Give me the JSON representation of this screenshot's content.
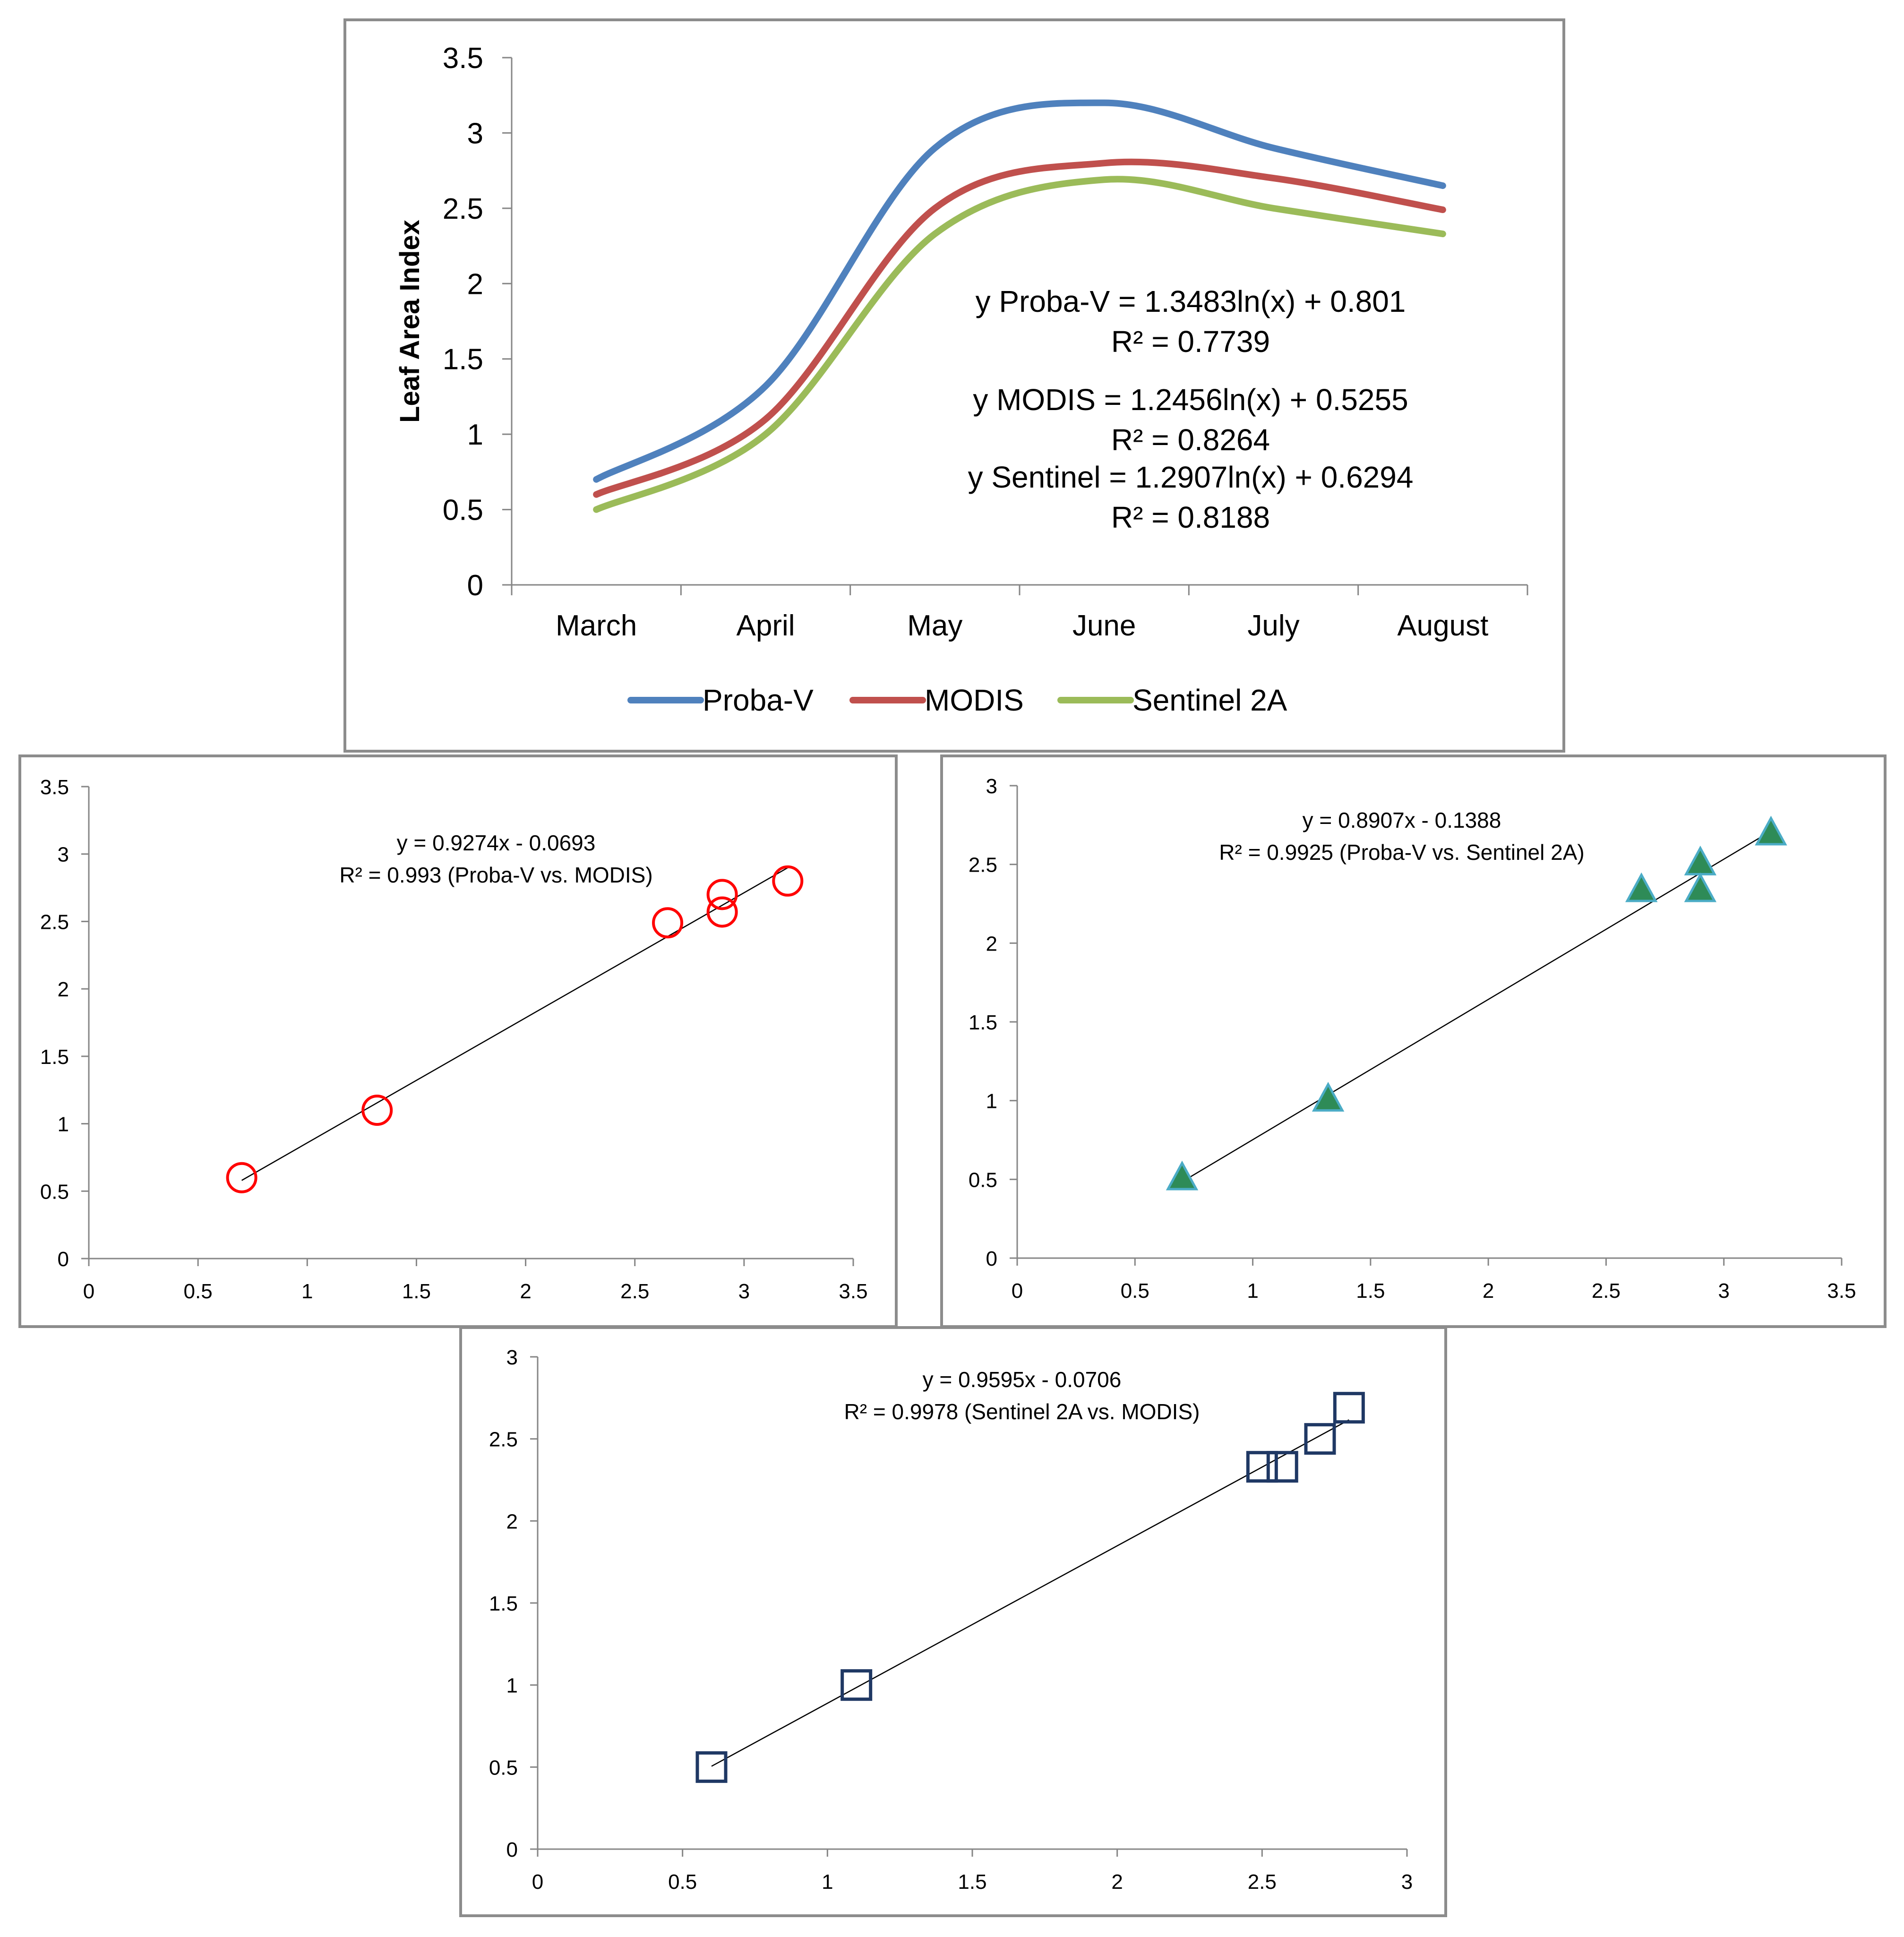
{
  "chart_data": [
    {
      "type": "line",
      "ylabel": "Leaf Area Index",
      "categories": [
        "March",
        "April",
        "May",
        "June",
        "July",
        "August"
      ],
      "yticks": [
        "0",
        "0.5",
        "1",
        "1.5",
        "2",
        "2.5",
        "3",
        "3.5"
      ],
      "ylim": [
        0,
        3.5
      ],
      "grid": false,
      "legend_position": "bottom",
      "series": [
        {
          "name": "Proba-V",
          "color": "#4f81bd",
          "values": [
            0.7,
            1.32,
            2.9,
            3.2,
            2.9,
            2.65
          ]
        },
        {
          "name": "MODIS",
          "color": "#c0504d",
          "values": [
            0.6,
            1.1,
            2.5,
            2.8,
            2.7,
            2.49
          ]
        },
        {
          "name": "Sentinel 2A",
          "color": "#9bbb59",
          "values": [
            0.5,
            1.0,
            2.33,
            2.69,
            2.5,
            2.33
          ]
        }
      ],
      "annotations": [
        "y Proba-V = 1.3483ln(x) + 0.801",
        "R² = 0.7739",
        "y MODIS = 1.2456ln(x) + 0.5255",
        "R² = 0.8264",
        "y Sentinel = 1.2907ln(x) + 0.6294",
        "R² = 0.8188"
      ]
    },
    {
      "type": "scatter",
      "xlim": [
        0,
        3.5
      ],
      "ylim": [
        0,
        3.5
      ],
      "xticks": [
        "0",
        "0.5",
        "1",
        "1.5",
        "2",
        "2.5",
        "3",
        "3.5"
      ],
      "yticks": [
        "0",
        "0.5",
        "1",
        "1.5",
        "2",
        "2.5",
        "3",
        "3.5"
      ],
      "marker": "circle",
      "marker_color": "#ff0000",
      "points": [
        [
          0.7,
          0.6
        ],
        [
          1.32,
          1.1
        ],
        [
          2.65,
          2.49
        ],
        [
          2.9,
          2.7
        ],
        [
          2.9,
          2.57
        ],
        [
          3.2,
          2.8
        ]
      ],
      "trendline": {
        "slope": 0.9274,
        "intercept": -0.0693,
        "x_range": [
          0.7,
          3.2
        ]
      },
      "annotations": [
        "y = 0.9274x - 0.0693",
        "R² = 0.993 (Proba-V vs. MODIS)"
      ]
    },
    {
      "type": "scatter",
      "xlim": [
        0,
        3.5
      ],
      "ylim": [
        0,
        3
      ],
      "xticks": [
        "0",
        "0.5",
        "1",
        "1.5",
        "2",
        "2.5",
        "3",
        "3.5"
      ],
      "yticks": [
        "0",
        "0.5",
        "1",
        "1.5",
        "2",
        "2.5",
        "3"
      ],
      "marker": "triangle",
      "marker_color": "#4bacc6",
      "marker_fill": "#2e8b57",
      "points": [
        [
          0.7,
          0.5
        ],
        [
          1.32,
          1.0
        ],
        [
          2.65,
          2.33
        ],
        [
          2.9,
          2.5
        ],
        [
          2.9,
          2.33
        ],
        [
          3.2,
          2.69
        ]
      ],
      "trendline": {
        "slope": 0.8907,
        "intercept": -0.1388,
        "x_range": [
          0.7,
          3.2
        ]
      },
      "annotations": [
        "y = 0.8907x - 0.1388",
        "R² = 0.9925 (Proba-V vs. Sentinel 2A)"
      ]
    },
    {
      "type": "scatter",
      "xlim": [
        0,
        3
      ],
      "ylim": [
        0,
        3
      ],
      "xticks": [
        "0",
        "0.5",
        "1",
        "1.5",
        "2",
        "2.5",
        "3"
      ],
      "yticks": [
        "0",
        "0.5",
        "1",
        "1.5",
        "2",
        "2.5",
        "3"
      ],
      "marker": "square",
      "marker_color": "#1f3864",
      "points": [
        [
          0.6,
          0.5
        ],
        [
          1.1,
          1.0
        ],
        [
          2.5,
          2.33
        ],
        [
          2.57,
          2.33
        ],
        [
          2.7,
          2.5
        ],
        [
          2.8,
          2.69
        ]
      ],
      "trendline": {
        "slope": 0.9595,
        "intercept": -0.0706,
        "x_range": [
          0.6,
          2.8
        ]
      },
      "annotations": [
        "y = 0.9595x - 0.0706",
        "R² = 0.9978 (Sentinel 2A vs. MODIS)"
      ]
    }
  ]
}
